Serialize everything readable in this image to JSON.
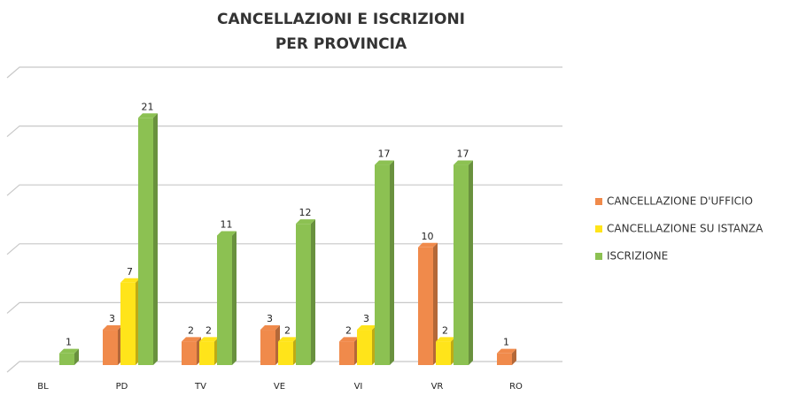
{
  "chart_data": {
    "type": "bar3d",
    "title": [
      "CANCELLAZIONI  E ISCRIZIONI",
      "PER PROVINCIA"
    ],
    "categories": [
      "BL",
      "PD",
      "TV",
      "VE",
      "VI",
      "VR",
      "RO"
    ],
    "series": [
      {
        "name": "CANCELLAZIONE D'UFFICIO",
        "color": "#f08a4b",
        "values": [
          null,
          3,
          2,
          3,
          2,
          10,
          1
        ]
      },
      {
        "name": "CANCELLAZIONE SU ISTANZA",
        "color": "#ffe41a",
        "values": [
          null,
          7,
          2,
          2,
          3,
          2,
          null
        ]
      },
      {
        "name": "ISCRIZIONE",
        "color": "#8cc152",
        "values": [
          1,
          21,
          11,
          12,
          17,
          17,
          null
        ]
      }
    ],
    "ylim": [
      0,
      25
    ],
    "yticks": [
      0,
      5,
      10,
      15,
      20,
      25
    ],
    "grid": true,
    "legend": "right"
  }
}
